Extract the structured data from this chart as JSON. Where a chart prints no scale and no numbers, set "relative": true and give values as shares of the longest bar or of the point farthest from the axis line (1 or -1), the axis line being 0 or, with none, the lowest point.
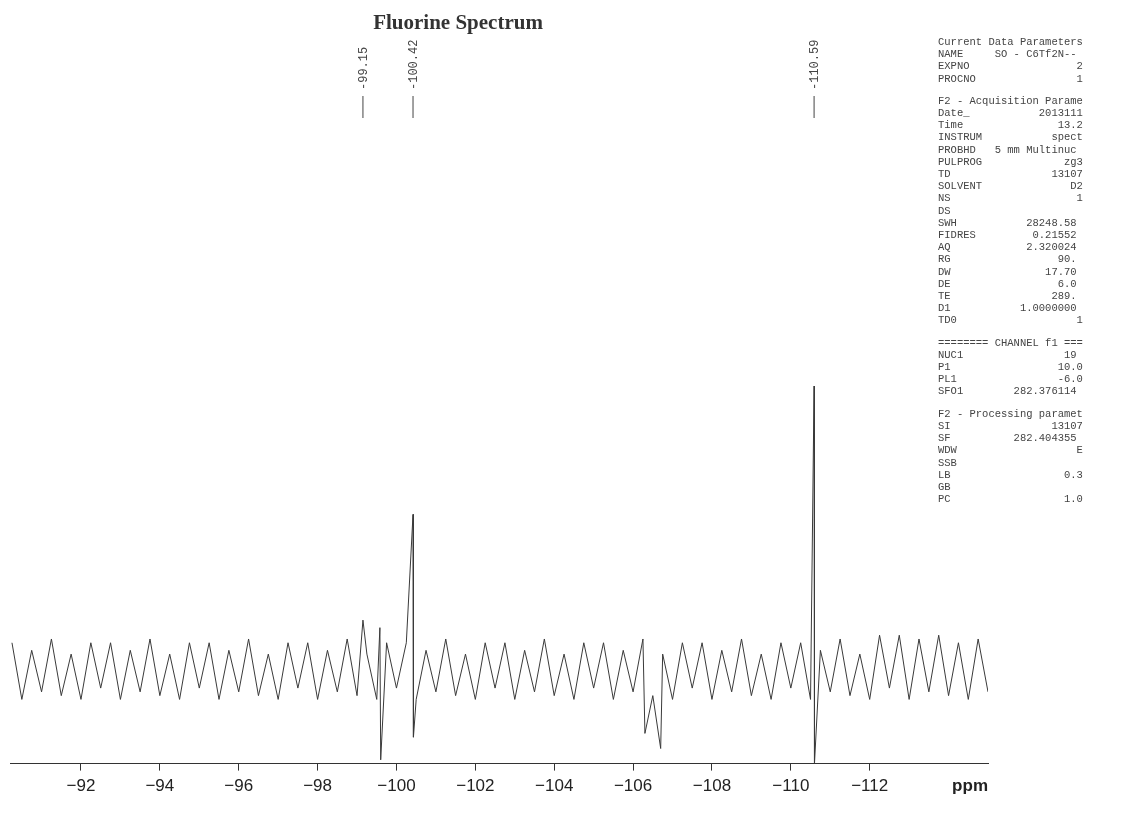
{
  "chart_data": {
    "type": "line",
    "title": "Fluorine Spectrum",
    "xlabel": "ppm",
    "relative": true,
    "legend": false,
    "marker": "none",
    "line_style": "solid",
    "xlim": [
      -90.2,
      -115.0
    ],
    "xticks": [
      -92,
      -94,
      -96,
      -98,
      -100,
      -102,
      -104,
      -106,
      -108,
      -110,
      -112
    ],
    "series": [
      {
        "color": "#3a3a3a",
        "x": [
          -90.25,
          -90.5,
          -90.75,
          -91,
          -91.25,
          -91.5,
          -91.75,
          -92,
          -92.25,
          -92.5,
          -92.75,
          -93,
          -93.25,
          -93.5,
          -93.75,
          -94,
          -94.25,
          -94.5,
          -94.75,
          -95,
          -95.25,
          -95.5,
          -95.75,
          -96,
          -96.25,
          -96.5,
          -96.75,
          -97,
          -97.25,
          -97.5,
          -97.75,
          -98,
          -98.25,
          -98.5,
          -98.75,
          -99,
          -99.15,
          -99.25,
          -99.5,
          -99.58,
          -99.6,
          -99.75,
          -100,
          -100.25,
          -100.42,
          -100.43,
          -100.5,
          -100.75,
          -101,
          -101.25,
          -101.5,
          -101.75,
          -102,
          -102.25,
          -102.5,
          -102.75,
          -103,
          -103.25,
          -103.5,
          -103.75,
          -104,
          -104.25,
          -104.5,
          -104.75,
          -105,
          -105.25,
          -105.5,
          -105.75,
          -106,
          -106.25,
          -106.3,
          -106.5,
          -106.7,
          -106.75,
          -107,
          -107.25,
          -107.5,
          -107.75,
          -108,
          -108.25,
          -108.5,
          -108.75,
          -109,
          -109.25,
          -109.5,
          -109.75,
          -110,
          -110.25,
          -110.5,
          -110.59,
          -110.6,
          -110.75,
          -111,
          -111.25,
          -111.5,
          -111.75,
          -112,
          -112.25,
          -112.5,
          -112.75,
          -113,
          -113.25,
          -113.5,
          -113.75,
          -114,
          -114.25,
          -114.5,
          -114.75,
          -115
        ],
        "values": [
          0.32,
          0.17,
          0.3,
          0.19,
          0.33,
          0.18,
          0.29,
          0.17,
          0.32,
          0.2,
          0.32,
          0.17,
          0.3,
          0.19,
          0.33,
          0.18,
          0.29,
          0.17,
          0.32,
          0.2,
          0.32,
          0.17,
          0.3,
          0.19,
          0.33,
          0.18,
          0.29,
          0.17,
          0.32,
          0.2,
          0.32,
          0.17,
          0.3,
          0.19,
          0.33,
          0.18,
          0.38,
          0.29,
          0.17,
          0.36,
          0.01,
          0.32,
          0.2,
          0.32,
          0.66,
          0.07,
          0.17,
          0.3,
          0.19,
          0.33,
          0.18,
          0.29,
          0.17,
          0.32,
          0.2,
          0.32,
          0.17,
          0.3,
          0.19,
          0.33,
          0.18,
          0.29,
          0.17,
          0.32,
          0.2,
          0.32,
          0.17,
          0.3,
          0.19,
          0.33,
          0.08,
          0.18,
          0.04,
          0.29,
          0.17,
          0.32,
          0.2,
          0.32,
          0.17,
          0.3,
          0.19,
          0.33,
          0.18,
          0.29,
          0.17,
          0.32,
          0.2,
          0.32,
          0.17,
          1,
          0,
          0.3,
          0.19,
          0.33,
          0.18,
          0.29,
          0.17,
          0.34,
          0.2,
          0.34,
          0.17,
          0.33,
          0.19,
          0.34,
          0.18,
          0.32,
          0.17,
          0.33,
          0.19
        ]
      }
    ],
    "annotations": [
      {
        "text": "-99.15",
        "x": -99.15
      },
      {
        "text": "-100.42",
        "x": -100.42
      },
      {
        "text": "-110.59",
        "x": -110.59
      },
      "Current Data Parameters",
      "NAME     SO - C6Tf2N--",
      "EXPNO                 2",
      "PROCNO                1",
      "F2 - Acquisition Parame",
      "Date_           2013111",
      "Time               13.2",
      "INSTRUM           spect",
      "PROBHD   5 mm Multinuc",
      "PULPROG             zg3",
      "TD                13107",
      "SOLVENT              D2",
      "NS                    1",
      "DS",
      "SWH           28248.58",
      "FIDRES         0.21552",
      "AQ            2.320024",
      "RG                 90.",
      "DW               17.70",
      "DE                 6.0",
      "TE                289.",
      "D1           1.0000000",
      "TD0                   1",
      "======== CHANNEL f1 ===",
      "NUC1                19",
      "P1                 10.0",
      "PL1                -6.0",
      "SFO1        282.376114",
      "F2 - Processing paramet",
      "SI                13107",
      "SF          282.404355",
      "WDW                   E",
      "SSB",
      "LB                  0.3",
      "GB",
      "PC                  1.0"
    ]
  }
}
